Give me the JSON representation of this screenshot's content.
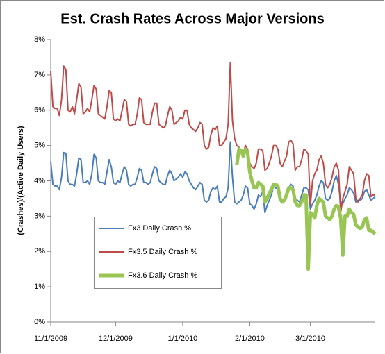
{
  "chart_data": {
    "type": "line",
    "title": "Est. Crash Rates Across Major Versions",
    "y_label": "(Crashes)/(Active Daily Users)",
    "x": [
      "11/1/2009",
      "11/2/2009",
      "11/3/2009",
      "11/4/2009",
      "11/5/2009",
      "11/6/2009",
      "11/7/2009",
      "11/8/2009",
      "11/9/2009",
      "11/10/2009",
      "11/11/2009",
      "11/12/2009",
      "11/13/2009",
      "11/14/2009",
      "11/15/2009",
      "11/16/2009",
      "11/17/2009",
      "11/18/2009",
      "11/19/2009",
      "11/20/2009",
      "11/21/2009",
      "11/22/2009",
      "11/23/2009",
      "11/24/2009",
      "11/25/2009",
      "11/26/2009",
      "11/27/2009",
      "11/28/2009",
      "11/29/2009",
      "11/30/2009",
      "12/1/2009",
      "12/2/2009",
      "12/3/2009",
      "12/4/2009",
      "12/5/2009",
      "12/6/2009",
      "12/7/2009",
      "12/8/2009",
      "12/9/2009",
      "12/10/2009",
      "12/11/2009",
      "12/12/2009",
      "12/13/2009",
      "12/14/2009",
      "12/15/2009",
      "12/16/2009",
      "12/17/2009",
      "12/18/2009",
      "12/19/2009",
      "12/20/2009",
      "12/21/2009",
      "12/22/2009",
      "12/23/2009",
      "12/24/2009",
      "12/25/2009",
      "12/26/2009",
      "12/27/2009",
      "12/28/2009",
      "12/29/2009",
      "12/30/2009",
      "12/31/2009",
      "1/1/2010",
      "1/2/2010",
      "1/3/2010",
      "1/4/2010",
      "1/5/2010",
      "1/6/2010",
      "1/7/2010",
      "1/8/2010",
      "1/9/2010",
      "1/10/2010",
      "1/11/2010",
      "1/12/2010",
      "1/13/2010",
      "1/14/2010",
      "1/15/2010",
      "1/16/2010",
      "1/17/2010",
      "1/18/2010",
      "1/19/2010",
      "1/20/2010",
      "1/21/2010",
      "1/22/2010",
      "1/23/2010",
      "1/24/2010",
      "1/25/2010",
      "1/26/2010",
      "1/27/2010",
      "1/28/2010",
      "1/29/2010",
      "1/30/2010",
      "1/31/2010",
      "2/1/2010",
      "2/2/2010",
      "2/3/2010",
      "2/4/2010",
      "2/5/2010",
      "2/6/2010",
      "2/7/2010",
      "2/8/2010",
      "2/9/2010",
      "2/10/2010",
      "2/11/2010",
      "2/12/2010",
      "2/13/2010",
      "2/14/2010",
      "2/15/2010",
      "2/16/2010",
      "2/17/2010",
      "2/18/2010",
      "2/19/2010",
      "2/20/2010",
      "2/21/2010",
      "2/22/2010",
      "2/23/2010",
      "2/24/2010",
      "2/25/2010",
      "2/26/2010",
      "2/27/2010",
      "2/28/2010",
      "3/1/2010",
      "3/2/2010",
      "3/3/2010",
      "3/4/2010",
      "3/5/2010",
      "3/6/2010",
      "3/7/2010",
      "3/8/2010",
      "3/9/2010",
      "3/10/2010",
      "3/11/2010",
      "3/12/2010",
      "3/13/2010",
      "3/14/2010",
      "3/15/2010",
      "3/16/2010",
      "3/17/2010",
      "3/18/2010",
      "3/19/2010",
      "3/20/2010",
      "3/21/2010",
      "3/22/2010",
      "3/23/2010",
      "3/24/2010",
      "3/25/2010",
      "3/26/2010",
      "3/27/2010",
      "3/28/2010",
      "3/29/2010",
      "3/30/2010",
      "3/31/2010"
    ],
    "xticks": [
      "11/1/2009",
      "12/1/2009",
      "1/1/2010",
      "2/1/2010",
      "3/1/2010"
    ],
    "ylim": [
      0,
      8
    ],
    "yticks": [
      {
        "value": 0,
        "label": "0%"
      },
      {
        "value": 1,
        "label": "1%"
      },
      {
        "value": 2,
        "label": "2%"
      },
      {
        "value": 3,
        "label": "3%"
      },
      {
        "value": 4,
        "label": "4%"
      },
      {
        "value": 5,
        "label": "5%"
      },
      {
        "value": 6,
        "label": "6%"
      },
      {
        "value": 7,
        "label": "7%"
      },
      {
        "value": 8,
        "label": "8%"
      }
    ],
    "grid": false,
    "series": [
      {
        "name": "Fx3 Daily Crash %",
        "color": "#4a7ebb",
        "width": 2,
        "values": [
          4.55,
          3.9,
          3.85,
          3.85,
          3.75,
          4.1,
          4.8,
          4.78,
          4.0,
          3.9,
          3.9,
          3.85,
          4.2,
          4.65,
          4.6,
          3.95,
          3.95,
          4.0,
          3.9,
          4.2,
          4.75,
          4.65,
          4.0,
          3.95,
          3.95,
          3.9,
          4.25,
          4.6,
          4.4,
          3.95,
          3.9,
          4.0,
          3.95,
          4.2,
          4.4,
          4.3,
          3.9,
          3.85,
          3.9,
          3.9,
          4.1,
          4.35,
          4.3,
          3.95,
          3.95,
          3.9,
          3.95,
          4.2,
          4.4,
          4.35,
          4.0,
          3.95,
          3.9,
          3.9,
          4.15,
          4.3,
          4.2,
          4.0,
          4.05,
          4.1,
          4.2,
          4.1,
          4.25,
          4.2,
          4.0,
          3.9,
          3.8,
          3.75,
          3.85,
          3.95,
          3.9,
          3.45,
          3.4,
          3.45,
          3.7,
          3.8,
          3.75,
          3.85,
          3.4,
          3.4,
          3.5,
          3.55,
          3.8,
          5.1,
          4.1,
          3.4,
          3.35,
          3.4,
          3.45,
          3.6,
          3.85,
          3.8,
          3.35,
          3.3,
          3.2,
          3.35,
          3.6,
          3.55,
          3.7,
          3.1,
          3.3,
          3.45,
          3.6,
          3.85,
          3.8,
          3.75,
          3.5,
          3.45,
          3.5,
          3.7,
          3.8,
          3.9,
          3.85,
          3.5,
          3.45,
          3.4,
          3.6,
          3.8,
          3.8,
          3.75,
          3.2,
          3.35,
          3.45,
          3.6,
          3.85,
          4.0,
          3.95,
          3.5,
          3.45,
          3.5,
          3.7,
          4.0,
          4.15,
          3.9,
          3.4,
          3.35,
          3.5,
          3.6,
          3.8,
          3.75,
          3.65,
          3.4,
          3.45,
          3.45,
          3.5,
          3.7,
          3.75,
          3.6,
          3.45,
          3.5,
          3.55
        ]
      },
      {
        "name": "Fx3.5 Daily Crash %",
        "color": "#be4b48",
        "width": 2,
        "values": [
          7.1,
          6.1,
          6.05,
          6.05,
          5.85,
          6.3,
          7.25,
          7.15,
          6.0,
          5.95,
          6.1,
          5.9,
          6.3,
          6.75,
          6.65,
          5.9,
          5.95,
          6.05,
          5.95,
          6.3,
          6.7,
          6.6,
          5.9,
          5.85,
          5.8,
          5.75,
          6.1,
          6.55,
          6.5,
          5.75,
          5.7,
          5.75,
          5.7,
          6.0,
          6.3,
          6.25,
          5.6,
          5.55,
          5.6,
          5.6,
          5.9,
          6.35,
          6.3,
          5.65,
          5.6,
          5.6,
          5.6,
          5.95,
          6.2,
          6.2,
          5.6,
          5.55,
          5.5,
          5.55,
          5.85,
          6.1,
          6.0,
          5.6,
          5.65,
          5.7,
          5.8,
          5.75,
          6.0,
          6.0,
          5.6,
          5.5,
          5.45,
          5.4,
          5.5,
          5.65,
          5.6,
          5.0,
          4.9,
          4.95,
          5.3,
          5.5,
          5.45,
          5.55,
          5.0,
          5.0,
          5.1,
          5.2,
          5.6,
          7.35,
          5.7,
          5.2,
          5.0,
          4.95,
          4.85,
          4.8,
          5.0,
          4.9,
          4.5,
          4.4,
          4.35,
          4.5,
          4.9,
          4.9,
          4.85,
          4.3,
          4.35,
          4.5,
          4.7,
          5.0,
          5.0,
          4.9,
          4.5,
          4.4,
          4.55,
          4.7,
          5.1,
          5.15,
          5.05,
          4.3,
          4.4,
          4.4,
          4.6,
          4.9,
          4.85,
          4.75,
          3.3,
          4.0,
          4.2,
          4.3,
          4.6,
          4.7,
          4.5,
          3.9,
          3.8,
          3.9,
          4.1,
          4.4,
          4.5,
          4.3,
          3.1,
          3.5,
          3.7,
          3.9,
          4.4,
          4.3,
          4.2,
          3.5,
          3.4,
          3.5,
          3.6,
          4.0,
          4.2,
          4.15,
          3.55,
          3.6,
          3.6
        ]
      },
      {
        "name": "Fx3.6 Daily Crash %",
        "color": "#98c554",
        "width": 5,
        "values": [
          null,
          null,
          null,
          null,
          null,
          null,
          null,
          null,
          null,
          null,
          null,
          null,
          null,
          null,
          null,
          null,
          null,
          null,
          null,
          null,
          null,
          null,
          null,
          null,
          null,
          null,
          null,
          null,
          null,
          null,
          null,
          null,
          null,
          null,
          null,
          null,
          null,
          null,
          null,
          null,
          null,
          null,
          null,
          null,
          null,
          null,
          null,
          null,
          null,
          null,
          null,
          null,
          null,
          null,
          null,
          null,
          null,
          null,
          null,
          null,
          null,
          null,
          null,
          null,
          null,
          null,
          null,
          null,
          null,
          null,
          null,
          null,
          null,
          null,
          null,
          null,
          null,
          null,
          null,
          null,
          null,
          null,
          null,
          null,
          null,
          null,
          4.45,
          4.9,
          4.85,
          4.7,
          4.9,
          4.8,
          4.25,
          4.0,
          3.8,
          3.8,
          3.95,
          3.9,
          3.85,
          3.4,
          3.5,
          3.65,
          3.75,
          3.9,
          3.9,
          3.85,
          3.5,
          3.4,
          3.45,
          3.6,
          3.8,
          3.8,
          3.75,
          3.4,
          3.3,
          3.3,
          3.4,
          3.6,
          3.6,
          1.5,
          3.1,
          3.05,
          2.95,
          3.3,
          3.5,
          3.45,
          3.4,
          3.0,
          2.95,
          2.9,
          3.0,
          3.2,
          3.3,
          3.25,
          2.95,
          1.9,
          3.0,
          3.0,
          3.2,
          3.1,
          3.05,
          2.75,
          2.7,
          2.65,
          2.7,
          2.9,
          2.95,
          2.6,
          2.6,
          2.55,
          2.5
        ]
      }
    ]
  }
}
